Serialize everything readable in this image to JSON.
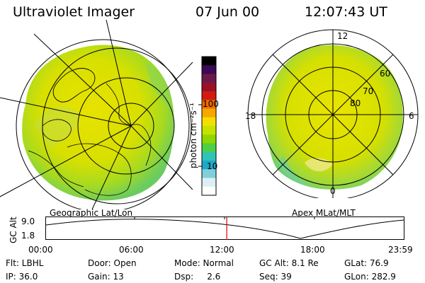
{
  "header": {
    "instrument": "Ultraviolet Imager",
    "date": "07 Jun 00",
    "time": "12:07:43 UT"
  },
  "geo_panel": {
    "caption": "Geographic Lat/Lon"
  },
  "apex_panel": {
    "caption": "Apex MLat/MLT",
    "mlt_labels": [
      "12",
      "18",
      "6",
      "0"
    ],
    "lat_labels": [
      "60",
      "70",
      "80"
    ]
  },
  "colorbar": {
    "unit_label": "photon cm⁻²s⁻¹",
    "ticks": [
      "100",
      "10"
    ],
    "colors": [
      "#000000",
      "#3b0a55",
      "#6a1a4a",
      "#9a1028",
      "#d31a10",
      "#f06a00",
      "#f6a800",
      "#f3e000",
      "#c6e300",
      "#8ed700",
      "#4fcf45",
      "#2ec4b8",
      "#20a8c8",
      "#7fd0dc",
      "#dceff2",
      "#ffffff"
    ]
  },
  "altitude_plot": {
    "y_label": "GC Alt",
    "y_ticks": [
      "9.0",
      "1.8"
    ],
    "x_ticks": [
      "00:00",
      "06:00",
      "12:00",
      "18:00",
      "23:59"
    ],
    "current_time_marker": "12:07",
    "marker_color": "#e00000"
  },
  "status": {
    "row1": [
      {
        "key": "flt",
        "text": "Flt: LBHL"
      },
      {
        "key": "door",
        "text": "Door: Open"
      },
      {
        "key": "mode",
        "text": "Mode: Normal"
      },
      {
        "key": "gcalt",
        "text": "GC Alt: 8.1 Re"
      },
      {
        "key": "glat",
        "text": "GLat:  76.9"
      }
    ],
    "row2": [
      {
        "key": "ip",
        "text": "IP: 36.0"
      },
      {
        "key": "gain",
        "text": "Gain: 13"
      },
      {
        "key": "dsp",
        "text": "Dsp:     2.6"
      },
      {
        "key": "seq",
        "text": "Seq: 39"
      },
      {
        "key": "glon",
        "text": "GLon: 282.9"
      }
    ]
  }
}
